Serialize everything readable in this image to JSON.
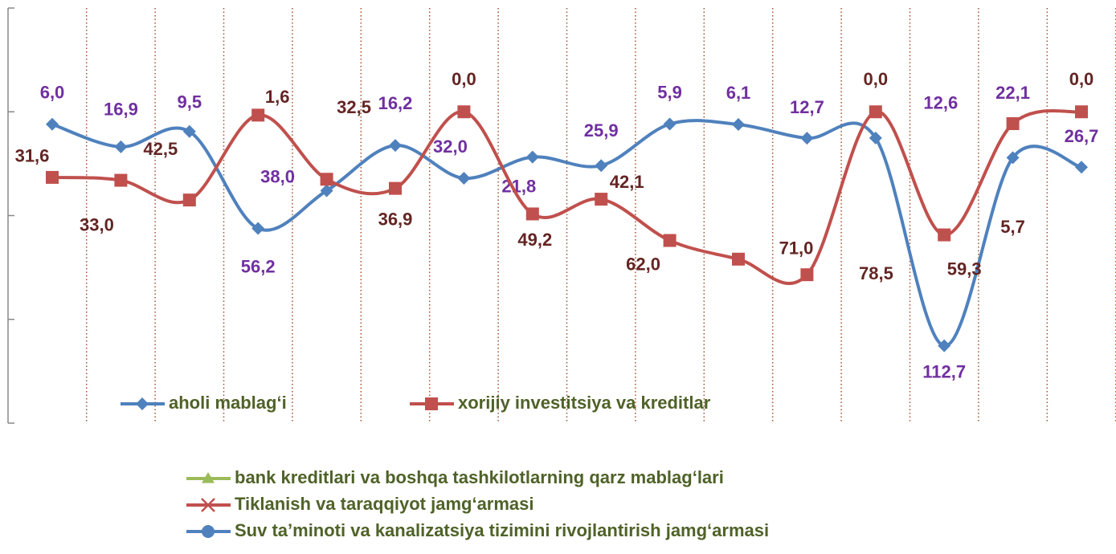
{
  "chart_data": {
    "type": "line",
    "categories": [
      null,
      null,
      null,
      null,
      null,
      null,
      null,
      null,
      null,
      null,
      null,
      null,
      null,
      null,
      null,
      null
    ],
    "series": [
      {
        "name": "aholi mablag‘i",
        "color": "#4f81bd",
        "label_color": "#7030a0",
        "marker": "diamond",
        "values": [
          6.0,
          16.9,
          9.5,
          56.2,
          38.0,
          16.2,
          32.0,
          21.8,
          25.9,
          5.9,
          6.1,
          12.7,
          12.6,
          112.7,
          22.1,
          26.7
        ],
        "value_labels": [
          "6,0",
          "16,9",
          "9,5",
          "56,2",
          "38,0",
          "16,2",
          "32,0",
          "21,8",
          "25,9",
          "5,9",
          "6,1",
          "12,7",
          "12,6",
          "112,7",
          "22,1",
          "26,7"
        ]
      },
      {
        "name": "xorijiy investitsiya va kreditlar",
        "color": "#c0504d",
        "label_color": "#632523",
        "marker": "square",
        "values": [
          31.6,
          33.0,
          42.5,
          1.6,
          32.5,
          36.9,
          0.0,
          49.2,
          42.1,
          62.0,
          71.0,
          78.5,
          0.0,
          59.3,
          5.7,
          0.0
        ],
        "value_labels": [
          "31,6",
          "33,0",
          "42,5",
          "1,6",
          "32,5",
          "36,9",
          "0,0",
          "49,2",
          "42,1",
          "62,0",
          "71,0",
          "78,5",
          "0,0",
          "59,3",
          "5,7",
          "0,0"
        ]
      }
    ],
    "extra_legend": [
      {
        "name": "bank kreditlari va boshqa tashkilotlarning qarz mablag‘lari",
        "color": "#9bbb59",
        "marker": "triangle"
      },
      {
        "name": "Tiklanish va taraqqiyot jamg‘armasi",
        "color": "#c0504d",
        "marker": "x"
      },
      {
        "name": "Suv ta’minoti va kanalizatsiya tizimini rivojlantirish jamg‘armasi",
        "color": "#4f81bd",
        "marker": "circle"
      }
    ],
    "ylim": [
      -50,
      150
    ],
    "y_inverted": true,
    "yticks": [
      -50,
      0,
      50,
      100,
      150
    ],
    "x_grid": true
  }
}
